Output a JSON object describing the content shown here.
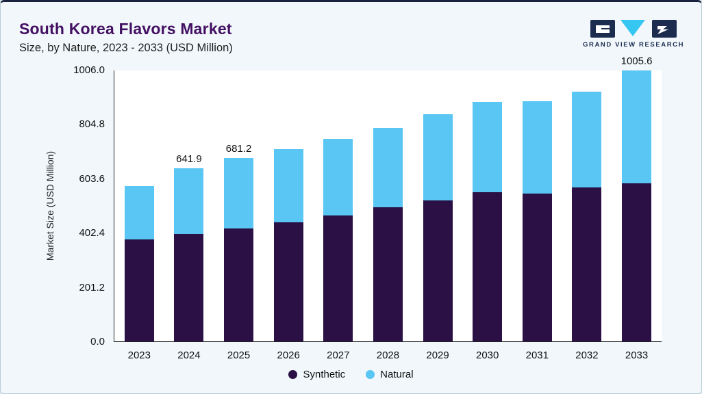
{
  "header": {
    "title": "South Korea Flavors Market",
    "subtitle": "Size, by Nature, 2023 - 2033 (USD Million)",
    "logo_text": "GRAND VIEW RESEARCH"
  },
  "chart_data": {
    "type": "bar",
    "stacked": true,
    "title": "South Korea Flavors Market Size, by Nature, 2023 - 2033 (USD Million)",
    "ylabel": "Market Size (USD Million)",
    "categories": [
      "2023",
      "2024",
      "2025",
      "2026",
      "2027",
      "2028",
      "2029",
      "2030",
      "2031",
      "2032",
      "2033"
    ],
    "series": [
      {
        "name": "Synthetic",
        "color": "#2a1045",
        "values": [
          378,
          400,
          420,
          443,
          468,
          497,
          523,
          553,
          548,
          572,
          588
        ]
      },
      {
        "name": "Natural",
        "color": "#59c6f3",
        "values": [
          200,
          241.9,
          261.2,
          272,
          284,
          296,
          320,
          337,
          344,
          356,
          417.6
        ]
      }
    ],
    "totals": [
      578,
      641.9,
      681.2,
      715,
      752,
      793,
      843,
      890,
      892,
      928,
      1005.6
    ],
    "data_labels": [
      "",
      "641.9",
      "681.2",
      "",
      "",
      "",
      "",
      "",
      "",
      "",
      "1005.6"
    ],
    "yticks": [
      0.0,
      201.2,
      402.4,
      603.6,
      804.8,
      1006.0
    ],
    "ylim": [
      0,
      1006.0
    ],
    "grid": false,
    "legend_position": "bottom"
  }
}
